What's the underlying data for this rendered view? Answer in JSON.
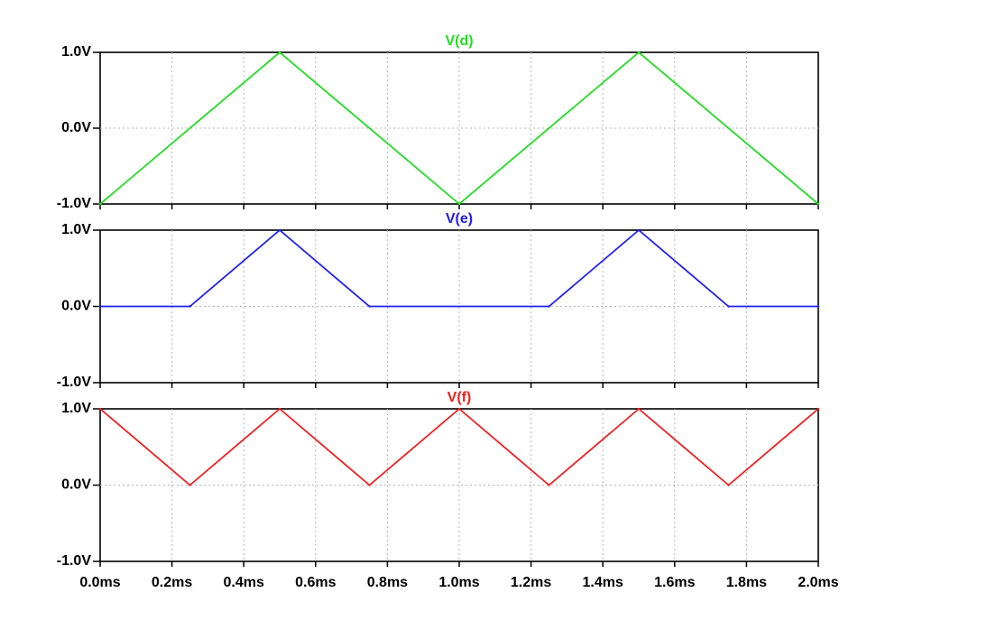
{
  "chart_data": [
    {
      "type": "line",
      "title": "V(d)",
      "color": "#22dd22",
      "xlim": [
        0,
        2.0
      ],
      "ylim": [
        -1.0,
        1.0
      ],
      "y_ticks": [
        {
          "value": 1.0,
          "label": "1.0V"
        },
        {
          "value": 0.0,
          "label": "0.0V"
        },
        {
          "value": -1.0,
          "label": "-1.0V"
        }
      ],
      "grid": true,
      "series": [
        {
          "name": "V(d)",
          "x": [
            0.0,
            0.5,
            1.0,
            1.5,
            2.0
          ],
          "y": [
            -1.0,
            1.0,
            -1.0,
            1.0,
            -1.0
          ]
        }
      ]
    },
    {
      "type": "line",
      "title": "V(e)",
      "color": "#2020ee",
      "xlim": [
        0,
        2.0
      ],
      "ylim": [
        -1.0,
        1.0
      ],
      "y_ticks": [
        {
          "value": 1.0,
          "label": "1.0V"
        },
        {
          "value": 0.0,
          "label": "0.0V"
        },
        {
          "value": -1.0,
          "label": "-1.0V"
        }
      ],
      "grid": true,
      "series": [
        {
          "name": "V(e)",
          "x": [
            0.0,
            0.25,
            0.5,
            0.75,
            1.25,
            1.5,
            1.75,
            2.0
          ],
          "y": [
            0.0,
            0.0,
            1.0,
            0.0,
            0.0,
            1.0,
            0.0,
            0.0
          ]
        }
      ]
    },
    {
      "type": "line",
      "title": "V(f)",
      "color": "#ee2020",
      "xlim": [
        0,
        2.0
      ],
      "ylim": [
        -1.0,
        1.0
      ],
      "y_ticks": [
        {
          "value": 1.0,
          "label": "1.0V"
        },
        {
          "value": 0.0,
          "label": "0.0V"
        },
        {
          "value": -1.0,
          "label": "-1.0V"
        }
      ],
      "grid": true,
      "series": [
        {
          "name": "V(f)",
          "x": [
            0.0,
            0.25,
            0.5,
            0.75,
            1.0,
            1.25,
            1.5,
            1.75,
            2.0
          ],
          "y": [
            1.0,
            0.0,
            1.0,
            0.0,
            1.0,
            0.0,
            1.0,
            0.0,
            1.0
          ]
        }
      ]
    }
  ],
  "x_axis": {
    "ticks": [
      {
        "value": 0.0,
        "label": "0.0ms"
      },
      {
        "value": 0.2,
        "label": "0.2ms"
      },
      {
        "value": 0.4,
        "label": "0.4ms"
      },
      {
        "value": 0.6,
        "label": "0.6ms"
      },
      {
        "value": 0.8,
        "label": "0.8ms"
      },
      {
        "value": 1.0,
        "label": "1.0ms"
      },
      {
        "value": 1.2,
        "label": "1.2ms"
      },
      {
        "value": 1.4,
        "label": "1.4ms"
      },
      {
        "value": 1.6,
        "label": "1.6ms"
      },
      {
        "value": 1.8,
        "label": "1.8ms"
      },
      {
        "value": 2.0,
        "label": "2.0ms"
      }
    ]
  }
}
